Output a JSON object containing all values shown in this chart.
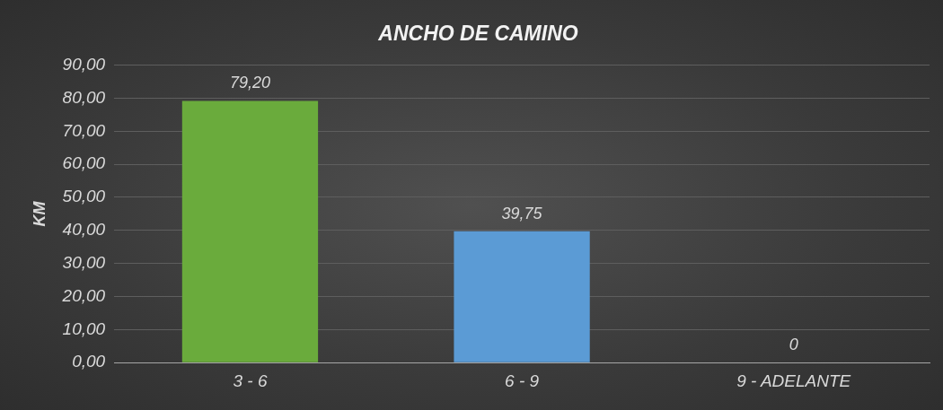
{
  "chart_data": {
    "type": "bar",
    "title": "ANCHO DE CAMINO",
    "ylabel": "KM",
    "categories": [
      "3 - 6",
      "6 - 9",
      "9 - ADELANTE"
    ],
    "values": [
      79.2,
      39.75,
      0
    ],
    "colors": [
      "#6aab3c",
      "#5b9bd5",
      "#a5a5a5"
    ],
    "value_labels": [
      "79,20",
      "39,75",
      "0"
    ],
    "ylim": [
      0,
      90
    ],
    "yticks": [
      {
        "value": 0,
        "label": "0,00"
      },
      {
        "value": 10,
        "label": "10,00"
      },
      {
        "value": 20,
        "label": "20,00"
      },
      {
        "value": 30,
        "label": "30,00"
      },
      {
        "value": 40,
        "label": "40,00"
      },
      {
        "value": 50,
        "label": "50,00"
      },
      {
        "value": 60,
        "label": "60,00"
      },
      {
        "value": 70,
        "label": "70,00"
      },
      {
        "value": 80,
        "label": "80,00"
      },
      {
        "value": 90,
        "label": "90,00"
      }
    ],
    "grid": "y",
    "legend": false
  }
}
